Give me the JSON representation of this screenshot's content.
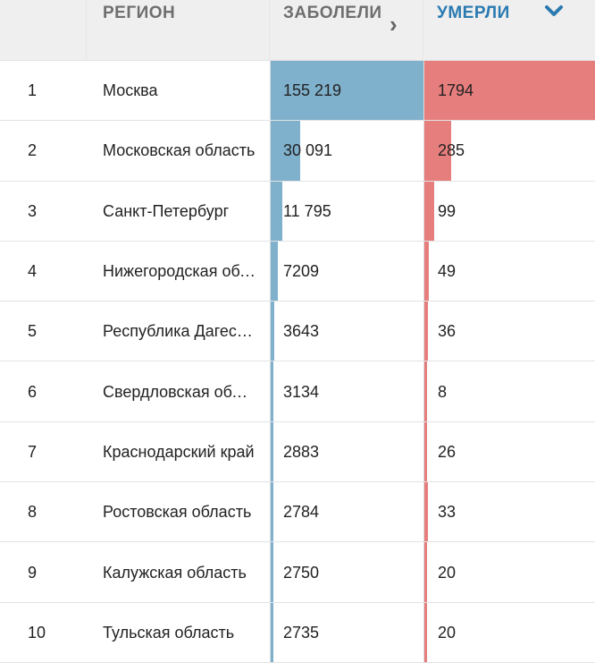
{
  "header": {
    "region": "РЕГИОН",
    "cases": "ЗАБОЛЕЛИ",
    "deaths": "УМЕРЛИ",
    "sort_icon": "chevron-down-icon",
    "cases_icon": "chevron-right-icon"
  },
  "colors": {
    "cases_bar": "#7fb0cc",
    "deaths_bar": "#e67e7d",
    "active_header": "#2a7ab0",
    "header_bg": "#efefef"
  },
  "rows": [
    {
      "rank": "1",
      "region": "Москва",
      "cases": "155 219",
      "deaths": "1794",
      "cases_value": 155219,
      "deaths_value": 1794
    },
    {
      "rank": "2",
      "region": "Московская область",
      "cases": "30 091",
      "deaths": "285",
      "cases_value": 30091,
      "deaths_value": 285
    },
    {
      "rank": "3",
      "region": "Санкт-Петербург",
      "cases": "11 795",
      "deaths": "99",
      "cases_value": 11795,
      "deaths_value": 99
    },
    {
      "rank": "4",
      "region": "Нижегородская область",
      "cases": "7209",
      "deaths": "49",
      "cases_value": 7209,
      "deaths_value": 49
    },
    {
      "rank": "5",
      "region": "Республика Дагестан",
      "cases": "3643",
      "deaths": "36",
      "cases_value": 3643,
      "deaths_value": 36
    },
    {
      "rank": "6",
      "region": "Свердловская область",
      "cases": "3134",
      "deaths": "8",
      "cases_value": 3134,
      "deaths_value": 8
    },
    {
      "rank": "7",
      "region": "Краснодарский край",
      "cases": "2883",
      "deaths": "26",
      "cases_value": 2883,
      "deaths_value": 26
    },
    {
      "rank": "8",
      "region": "Ростовская область",
      "cases": "2784",
      "deaths": "33",
      "cases_value": 2784,
      "deaths_value": 33
    },
    {
      "rank": "9",
      "region": "Калужская область",
      "cases": "2750",
      "deaths": "20",
      "cases_value": 2750,
      "deaths_value": 20
    },
    {
      "rank": "10",
      "region": "Тульская область",
      "cases": "2735",
      "deaths": "20",
      "cases_value": 2735,
      "deaths_value": 20
    }
  ]
}
